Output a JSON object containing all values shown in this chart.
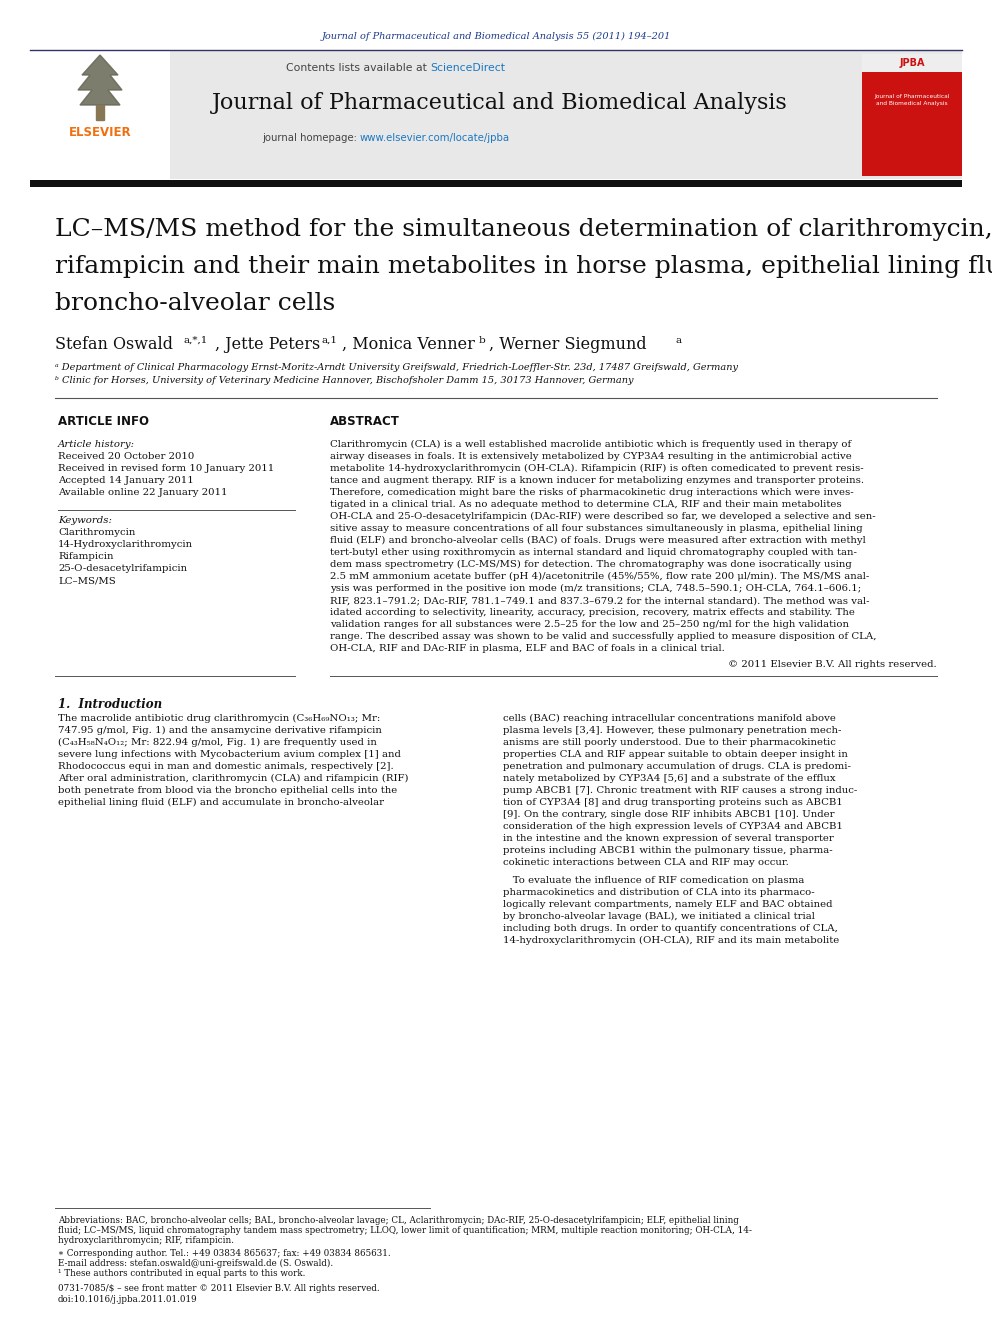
{
  "page_bg": "#ffffff",
  "top_journal_ref": "Journal of Pharmaceutical and Biomedical Analysis 55 (2011) 194–201",
  "journal_name": "Journal of Pharmaceutical and Biomedical Analysis",
  "header_bg": "#e8e8e8",
  "elsevier_color": "#f07010",
  "title_line1": "LC–MS/MS method for the simultaneous determination of clarithromycin,",
  "title_line2": "rifampicin and their main metabolites in horse plasma, epithelial lining fluid and",
  "title_line3": "broncho-alveolar cells",
  "affil_a": "ᵃ Department of Clinical Pharmacology Ernst-Moritz-Arndt University Greifswald, Friedrich-Loeffler-Str. 23d, 17487 Greifswald, Germany",
  "affil_b": "ᵇ Clinic for Horses, University of Veterinary Medicine Hannover, Bischofsholer Damm 15, 30173 Hannover, Germany",
  "article_info_label": "ARTICLE INFO",
  "abstract_label": "ABSTRACT",
  "article_history_label": "Article history:",
  "received_1": "Received 20 October 2010",
  "received_revised": "Received in revised form 10 January 2011",
  "accepted": "Accepted 14 January 2011",
  "available": "Available online 22 January 2011",
  "keywords_label": "Keywords:",
  "keyword1": "Clarithromycin",
  "keyword2": "14-Hydroxyclarithromycin",
  "keyword3": "Rifampicin",
  "keyword4": "25-O-desacetylrifampicin",
  "keyword5": "LC–MS/MS",
  "copyright": "© 2011 Elsevier B.V. All rights reserved.",
  "intro_label": "1.  Introduction",
  "footnote_abbrev_line1": "Abbreviations: BAC, broncho-alveolar cells; BAL, broncho-alveolar lavage; CL, Aclarithromycin; DAc-RIF, 25-O-desacetylrifampicin; ELF, epithelial lining",
  "footnote_abbrev_line2": "fluid; LC–MS/MS, liquid chromatography tandem mass spectrometry; LLOQ, lower limit of quantification; MRM, multiple reaction monitoring; OH-CLA, 14-",
  "footnote_abbrev_line3": "hydroxyclarithromycin; RIF, rifampicin.",
  "footnote_corresp": "∗ Corresponding author. Tel.: +49 03834 865637; fax: +49 03834 865631.",
  "footnote_email": "E-mail address: stefan.oswald@uni-greifswald.de (S. Oswald).",
  "footnote_1": "¹ These authors contributed in equal parts to this work.",
  "bottom_issn": "0731-7085/$ – see front matter © 2011 Elsevier B.V. All rights reserved.",
  "bottom_doi": "doi:10.1016/j.jpba.2011.01.019",
  "abstract_lines": [
    "Clarithromycin (CLA) is a well established macrolide antibiotic which is frequently used in therapy of",
    "airway diseases in foals. It is extensively metabolized by CYP3A4 resulting in the antimicrobial active",
    "metabolite 14-hydroxyclarithromycin (OH-CLA). Rifampicin (RIF) is often comedicated to prevent resis-",
    "tance and augment therapy. RIF is a known inducer for metabolizing enzymes and transporter proteins.",
    "Therefore, comedication might bare the risks of pharmacokinetic drug interactions which were inves-",
    "tigated in a clinical trial. As no adequate method to determine CLA, RIF and their main metabolites",
    "OH-CLA and 25-O-desacetylrifampicin (DAc-RIF) were described so far, we developed a selective and sen-",
    "sitive assay to measure concentrations of all four substances simultaneously in plasma, epithelial lining",
    "fluid (ELF) and broncho-alveolar cells (BAC) of foals. Drugs were measured after extraction with methyl",
    "tert-butyl ether using roxithromycin as internal standard and liquid chromatography coupled with tan-",
    "dem mass spectrometry (LC-MS/MS) for detection. The chromatography was done isocratically using",
    "2.5 mM ammonium acetate buffer (pH 4)/acetonitrile (45%/55%, flow rate 200 μl/min). The MS/MS anal-",
    "ysis was performed in the positive ion mode (m/z transitions; CLA, 748.5–590.1; OH-CLA, 764.1–606.1;",
    "RIF, 823.1–791.2; DAc-RIF, 781.1–749.1 and 837.3–679.2 for the internal standard). The method was val-",
    "idated according to selectivity, linearity, accuracy, precision, recovery, matrix effects and stability. The",
    "validation ranges for all substances were 2.5–25 for the low and 25–250 ng/ml for the high validation",
    "range. The described assay was shown to be valid and successfully applied to measure disposition of CLA,",
    "OH-CLA, RIF and DAc-RIF in plasma, ELF and BAC of foals in a clinical trial."
  ],
  "intro_left_lines": [
    "The macrolide antibiotic drug clarithromycin (C₃₆H₆₉NO₁₃; Mr:",
    "747.95 g/mol, Fig. 1) and the ansamycine derivative rifampicin",
    "(C₄₃H₅₈N₄O₁₂; Mr: 822.94 g/mol, Fig. 1) are frequently used in",
    "severe lung infections with Mycobacterium avium complex [1] and",
    "Rhodococcus equi in man and domestic animals, respectively [2].",
    "After oral administration, clarithromycin (CLA) and rifampicin (RIF)",
    "both penetrate from blood via the broncho epithelial cells into the",
    "epithelial lining fluid (ELF) and accumulate in broncho-alveolar"
  ],
  "intro_right_lines": [
    "cells (BAC) reaching intracellular concentrations manifold above",
    "plasma levels [3,4]. However, these pulmonary penetration mech-",
    "anisms are still poorly understood. Due to their pharmacokinetic",
    "properties CLA and RIF appear suitable to obtain deeper insight in",
    "penetration and pulmonary accumulation of drugs. CLA is predomi-",
    "nately metabolized by CYP3A4 [5,6] and a substrate of the efflux",
    "pump ABCB1 [7]. Chronic treatment with RIF causes a strong induc-",
    "tion of CYP3A4 [8] and drug transporting proteins such as ABCB1",
    "[9]. On the contrary, single dose RIF inhibits ABCB1 [10]. Under",
    "consideration of the high expression levels of CYP3A4 and ABCB1",
    "in the intestine and the known expression of several transporter",
    "proteins including ABCB1 within the pulmonary tissue, pharma-",
    "cokinetic interactions between CLA and RIF may occur."
  ],
  "intro_right2_lines": [
    "   To evaluate the influence of RIF comedication on plasma",
    "pharmacokinetics and distribution of CLA into its pharmaco-",
    "logically relevant compartments, namely ELF and BAC obtained",
    "by broncho-alveolar lavage (BAL), we initiated a clinical trial",
    "including both drugs. In order to quantify concentrations of CLA,",
    "14-hydroxyclarithromycin (OH-CLA), RIF and its main metabolite"
  ]
}
